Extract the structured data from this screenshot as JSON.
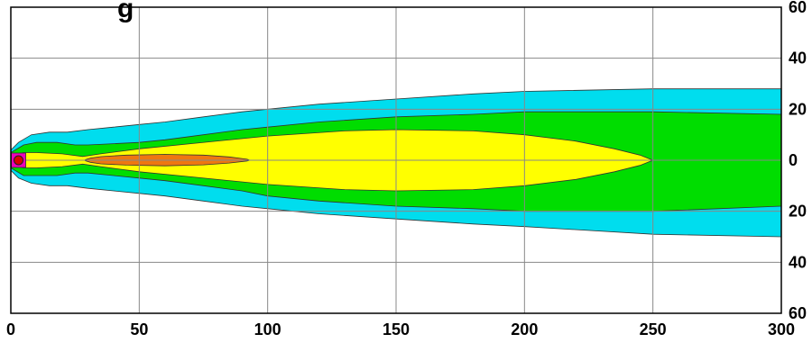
{
  "chart_data": {
    "type": "heatmap",
    "title": "g",
    "xlim": [
      0,
      300
    ],
    "ylim": [
      -60,
      60
    ],
    "x_ticks": [
      0,
      50,
      100,
      150,
      200,
      250,
      300
    ],
    "y_ticks": [
      60,
      40,
      20,
      0,
      -20,
      -40,
      -60
    ],
    "x_tick_labels": [
      "0",
      "50",
      "100",
      "150",
      "200",
      "250",
      "300"
    ],
    "y_tick_labels": [
      "60",
      "40",
      "20",
      "0",
      "20",
      "40",
      "60"
    ],
    "grid": true,
    "colors": {
      "cyan": "#00ddee",
      "green": "#00dd00",
      "yellow": "#ffff00",
      "orange": "#ee7711",
      "red": "#dd0000",
      "magenta": "#ee00bb",
      "grid": "#888888"
    },
    "contours": [
      {
        "color": "cyan",
        "upper": [
          [
            0,
            4
          ],
          [
            3,
            7
          ],
          [
            8,
            10
          ],
          [
            15,
            11
          ],
          [
            22,
            11
          ],
          [
            30,
            12
          ],
          [
            40,
            13
          ],
          [
            50,
            14
          ],
          [
            60,
            15
          ],
          [
            75,
            17
          ],
          [
            90,
            19
          ],
          [
            100,
            20
          ],
          [
            120,
            22
          ],
          [
            150,
            24
          ],
          [
            180,
            26
          ],
          [
            200,
            27
          ],
          [
            250,
            28
          ],
          [
            300,
            28
          ]
        ],
        "lower": [
          [
            0,
            -4
          ],
          [
            3,
            -7
          ],
          [
            8,
            -9
          ],
          [
            15,
            -10
          ],
          [
            22,
            -10
          ],
          [
            30,
            -11
          ],
          [
            40,
            -12
          ],
          [
            50,
            -13
          ],
          [
            60,
            -14
          ],
          [
            75,
            -16
          ],
          [
            90,
            -18
          ],
          [
            100,
            -19
          ],
          [
            120,
            -21
          ],
          [
            150,
            -23
          ],
          [
            180,
            -25
          ],
          [
            200,
            -26
          ],
          [
            250,
            -29
          ],
          [
            300,
            -30
          ]
        ]
      },
      {
        "color": "green",
        "upper": [
          [
            0,
            3
          ],
          [
            5,
            6
          ],
          [
            10,
            7
          ],
          [
            18,
            7
          ],
          [
            25,
            6
          ],
          [
            30,
            6
          ],
          [
            40,
            6.5
          ],
          [
            50,
            7
          ],
          [
            60,
            8
          ],
          [
            75,
            10
          ],
          [
            90,
            12
          ],
          [
            100,
            13
          ],
          [
            120,
            15
          ],
          [
            150,
            17
          ],
          [
            180,
            18
          ],
          [
            200,
            19
          ],
          [
            250,
            19
          ],
          [
            300,
            18
          ]
        ],
        "lower": [
          [
            0,
            -3
          ],
          [
            5,
            -6
          ],
          [
            10,
            -6
          ],
          [
            18,
            -6
          ],
          [
            25,
            -5
          ],
          [
            30,
            -5
          ],
          [
            40,
            -6
          ],
          [
            50,
            -7
          ],
          [
            60,
            -8
          ],
          [
            75,
            -10
          ],
          [
            90,
            -12
          ],
          [
            100,
            -14
          ],
          [
            120,
            -16
          ],
          [
            150,
            -18
          ],
          [
            180,
            -19
          ],
          [
            200,
            -20
          ],
          [
            250,
            -20
          ],
          [
            300,
            -18
          ]
        ]
      },
      {
        "color": "yellow",
        "upper": [
          [
            0,
            2
          ],
          [
            5,
            3
          ],
          [
            10,
            3
          ],
          [
            20,
            2.5
          ],
          [
            28,
            1.5
          ],
          [
            35,
            2.5
          ],
          [
            50,
            4.5
          ],
          [
            70,
            6.5
          ],
          [
            100,
            9.5
          ],
          [
            130,
            11.5
          ],
          [
            150,
            12
          ],
          [
            180,
            11.5
          ],
          [
            200,
            10
          ],
          [
            220,
            7.5
          ],
          [
            235,
            4.5
          ],
          [
            245,
            2
          ],
          [
            250,
            0
          ]
        ],
        "lower": [
          [
            0,
            -2
          ],
          [
            5,
            -3
          ],
          [
            10,
            -3
          ],
          [
            20,
            -2.5
          ],
          [
            28,
            -1.5
          ],
          [
            35,
            -2.5
          ],
          [
            50,
            -4.5
          ],
          [
            70,
            -6.5
          ],
          [
            100,
            -9.5
          ],
          [
            130,
            -11.5
          ],
          [
            150,
            -12
          ],
          [
            180,
            -11.5
          ],
          [
            200,
            -10
          ],
          [
            220,
            -7.5
          ],
          [
            235,
            -4.5
          ],
          [
            245,
            -2
          ],
          [
            250,
            0
          ]
        ]
      },
      {
        "color": "orange",
        "upper": [
          [
            29,
            0.2
          ],
          [
            31,
            0.8
          ],
          [
            35,
            1.4
          ],
          [
            45,
            2.0
          ],
          [
            60,
            2.3
          ],
          [
            75,
            2.0
          ],
          [
            85,
            1.3
          ],
          [
            92,
            0.4
          ],
          [
            93,
            0
          ]
        ],
        "lower": [
          [
            29,
            -0.2
          ],
          [
            31,
            -0.8
          ],
          [
            35,
            -1.4
          ],
          [
            45,
            -1.9
          ],
          [
            60,
            -2.2
          ],
          [
            75,
            -1.8
          ],
          [
            85,
            -1.1
          ],
          [
            92,
            -0.3
          ],
          [
            93,
            0
          ]
        ]
      }
    ],
    "source_marker": {
      "x": 3,
      "y": 0,
      "colors": [
        "magenta",
        "red"
      ]
    }
  }
}
